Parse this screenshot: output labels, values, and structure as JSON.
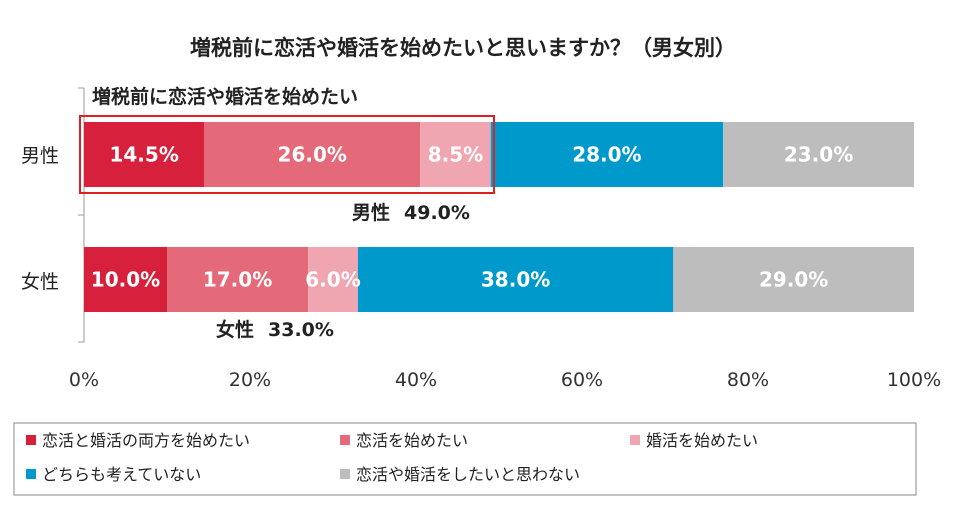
{
  "chart_data": {
    "type": "bar",
    "orientation": "horizontal",
    "stacked": true,
    "title": "増税前に恋活や婚活を始めたいと思いますか？（男女別）",
    "categories": [
      "男性",
      "女性"
    ],
    "series": [
      {
        "name": "恋活と婚活の両方を始めたい",
        "values": [
          14.5,
          10.0
        ],
        "color": "#d7213c",
        "labels": [
          "14.5%",
          "10.0%"
        ]
      },
      {
        "name": "恋活を始めたい",
        "values": [
          26.0,
          17.0
        ],
        "color": "#e46a79",
        "labels": [
          "26.0%",
          "17.0%"
        ]
      },
      {
        "name": "婚活を始めたい",
        "values": [
          8.5,
          6.0
        ],
        "color": "#f0a6b1",
        "labels": [
          "8.5%",
          "6.0%"
        ]
      },
      {
        "name": "どちらも考えていない",
        "values": [
          28.0,
          38.0
        ],
        "color": "#0099cc",
        "labels": [
          "28.0%",
          "38.0%"
        ]
      },
      {
        "name": "恋活や婚活をしたいと思わない",
        "values": [
          23.0,
          29.0
        ],
        "color": "#bdbdbd",
        "labels": [
          "23.0%",
          "29.0%"
        ]
      }
    ],
    "xlim": [
      0,
      100
    ],
    "xticks": [
      "0%",
      "20%",
      "40%",
      "60%",
      "80%",
      "100%"
    ],
    "grid": false,
    "legend_position": "bottom",
    "annotations": {
      "highlight_label": "増税前に恋活や婚活を始めたい",
      "totals": [
        {
          "category": "男性",
          "label": "男性",
          "value": "49.0%"
        },
        {
          "category": "女性",
          "label": "女性",
          "value": "33.0%"
        }
      ]
    }
  }
}
